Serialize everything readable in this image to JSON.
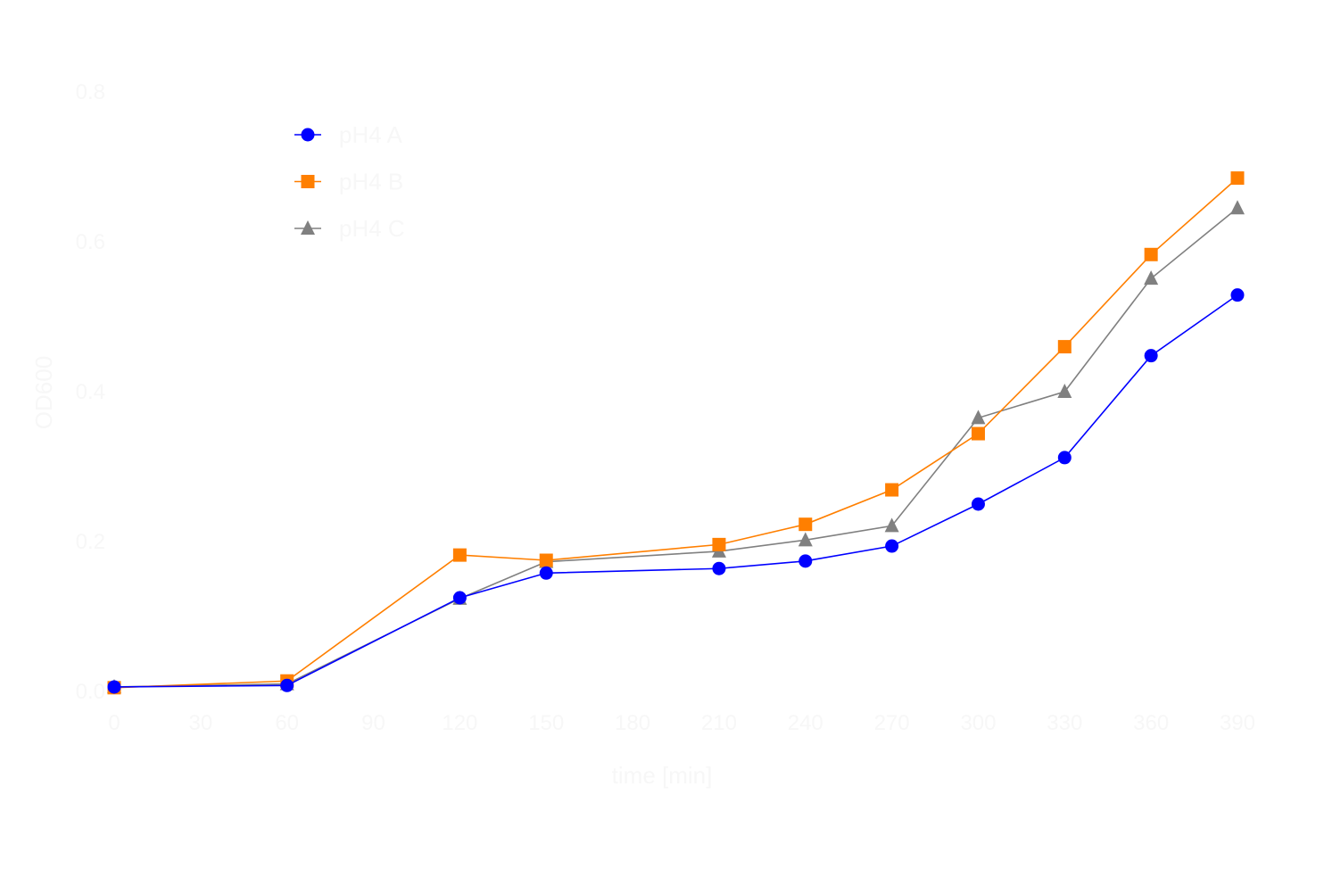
{
  "chart_data": {
    "type": "line",
    "title": "",
    "xlabel": "time [min]",
    "ylabel": "OD600",
    "xlim": [
      0,
      390
    ],
    "ylim": [
      0,
      0.8
    ],
    "xticks": [
      0,
      30,
      60,
      90,
      120,
      150,
      180,
      210,
      240,
      270,
      300,
      330,
      360,
      390
    ],
    "yticks": [
      "0.0",
      "0.2",
      "0.4",
      "0.6",
      "0.8"
    ],
    "grid": false,
    "legend_position": "top-left",
    "x": [
      0,
      60,
      120,
      150,
      210,
      240,
      270,
      300,
      330,
      360,
      390
    ],
    "series": [
      {
        "name": "pH4 A",
        "color": "#0000ff",
        "marker": "circle",
        "values": [
          0.006,
          0.008,
          0.125,
          0.158,
          0.164,
          0.174,
          0.194,
          0.25,
          0.312,
          0.448,
          0.529
        ]
      },
      {
        "name": "pH4 B",
        "color": "#ff7f00",
        "marker": "square",
        "values": [
          0.005,
          0.014,
          0.182,
          0.175,
          0.196,
          0.223,
          0.269,
          0.344,
          0.46,
          0.583,
          0.685
        ]
      },
      {
        "name": "pH4 C",
        "color": "#808080",
        "marker": "triangle",
        "values": [
          0.006,
          0.01,
          0.124,
          0.173,
          0.187,
          0.202,
          0.221,
          0.365,
          0.4,
          0.551,
          0.645
        ]
      }
    ]
  }
}
